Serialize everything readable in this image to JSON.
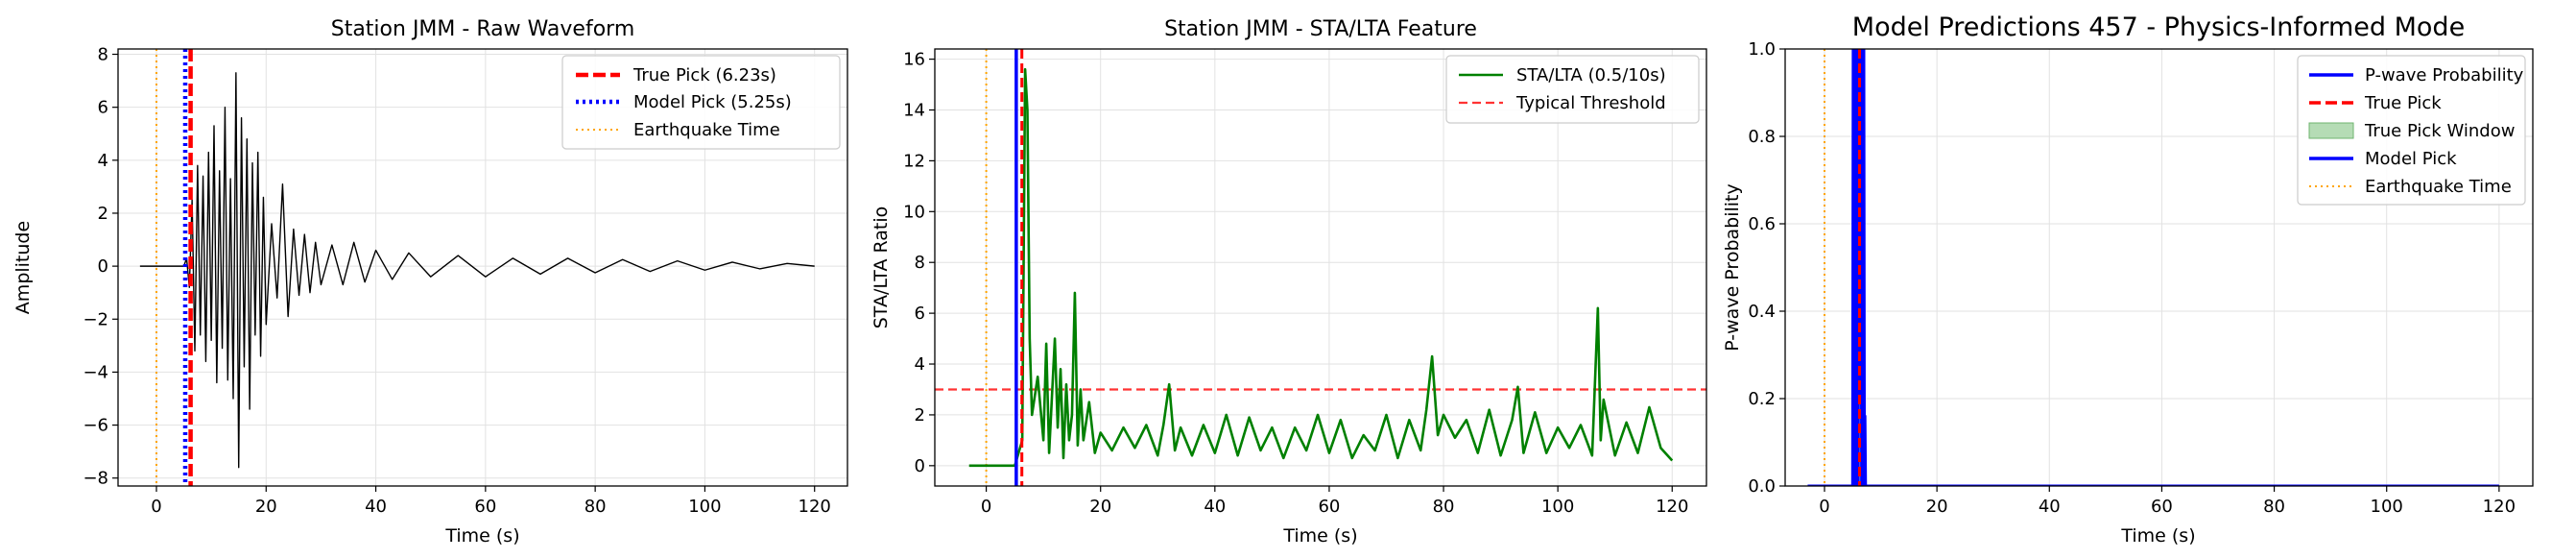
{
  "colors": {
    "true_pick": "#ff0000",
    "model_pick": "#0000ff",
    "eq_time": "#ffa500",
    "waveform": "#000000",
    "sta_lta": "#008000",
    "threshold": "#ff3333",
    "probability": "#0000ff",
    "window_fill": "#b5dcb5"
  },
  "chart_data": [
    {
      "type": "line",
      "title": "Station JMM - Raw Waveform",
      "xlabel": "Time (s)",
      "ylabel": "Amplitude",
      "xlim": [
        -7,
        126
      ],
      "ylim": [
        -8.3,
        8.2
      ],
      "xticks": [
        0,
        20,
        40,
        60,
        80,
        100,
        120
      ],
      "xtick_labels": [
        "0",
        "20",
        "40",
        "60",
        "80",
        "100",
        "120"
      ],
      "yticks": [
        8,
        6,
        4,
        2,
        0,
        -2,
        -4,
        -6,
        -8
      ],
      "ytick_labels": [
        "8",
        "6",
        "4",
        "2",
        "0",
        "−2",
        "−4",
        "−6",
        "−8"
      ],
      "grid": true,
      "legend_position": "top-right",
      "legend": [
        "True Pick (6.23s)",
        "Model Pick (5.25s)",
        "Earthquake Time"
      ],
      "series": [
        {
          "name": "waveform",
          "x": [
            -3,
            0,
            3,
            5,
            5.5,
            6,
            6.5,
            7,
            7.5,
            8,
            8.5,
            9,
            9.5,
            10,
            10.5,
            11,
            11.5,
            12,
            12.5,
            13,
            13.5,
            14,
            14.5,
            15,
            15.5,
            16,
            16.5,
            17,
            17.5,
            18,
            18.5,
            19,
            19.5,
            20,
            21,
            22,
            23,
            24,
            25,
            26,
            27,
            28,
            29,
            30,
            32,
            34,
            36,
            38,
            40,
            43,
            46,
            50,
            55,
            60,
            65,
            70,
            75,
            80,
            85,
            90,
            95,
            100,
            105,
            110,
            115,
            120
          ],
          "values": [
            0,
            0,
            0,
            0,
            0.3,
            -0.8,
            2.5,
            -3.2,
            3.8,
            -2.6,
            3.4,
            -3.6,
            4.3,
            -2.8,
            5.3,
            -4.4,
            3.6,
            -3.1,
            6.0,
            -4.3,
            3.3,
            -5.0,
            7.3,
            -7.6,
            5.6,
            -3.8,
            4.8,
            -5.4,
            3.9,
            -2.6,
            4.3,
            -3.4,
            2.6,
            -2.2,
            1.6,
            -1.2,
            3.1,
            -1.9,
            1.4,
            -1.1,
            1.2,
            -1.0,
            0.9,
            -0.7,
            0.8,
            -0.7,
            0.9,
            -0.6,
            0.6,
            -0.5,
            0.5,
            -0.4,
            0.4,
            -0.4,
            0.3,
            -0.3,
            0.3,
            -0.25,
            0.25,
            -0.2,
            0.2,
            -0.15,
            0.15,
            -0.1,
            0.1,
            0
          ]
        },
        {
          "name": "True Pick (6.23s)",
          "vline": 6.23
        },
        {
          "name": "Model Pick (5.25s)",
          "vline": 5.25
        },
        {
          "name": "Earthquake Time",
          "vline": 0
        }
      ]
    },
    {
      "type": "line",
      "title": "Station JMM - STA/LTA Feature",
      "xlabel": "Time (s)",
      "ylabel": "STA/LTA Ratio",
      "xlim": [
        -9,
        126
      ],
      "ylim": [
        -0.8,
        16.4
      ],
      "xticks": [
        0,
        20,
        40,
        60,
        80,
        100,
        120
      ],
      "xtick_labels": [
        "0",
        "20",
        "40",
        "60",
        "80",
        "100",
        "120"
      ],
      "yticks": [
        0,
        2,
        4,
        6,
        8,
        10,
        12,
        14,
        16
      ],
      "ytick_labels": [
        "0",
        "2",
        "4",
        "6",
        "8",
        "10",
        "12",
        "14",
        "16"
      ],
      "grid": true,
      "legend_position": "top-right",
      "legend": [
        "STA/LTA (0.5/10s)",
        "Typical Threshold"
      ],
      "threshold": 3,
      "series": [
        {
          "name": "STA/LTA (0.5/10s)",
          "x": [
            -3,
            5,
            6.3,
            6.8,
            7.2,
            7.6,
            8,
            9,
            10,
            10.5,
            11,
            12,
            12.5,
            13,
            13.5,
            14,
            14.5,
            15,
            15.5,
            16,
            16.5,
            17,
            18,
            19,
            20,
            22,
            24,
            26,
            28,
            30,
            31,
            32,
            33,
            34,
            36,
            38,
            40,
            42,
            44,
            46,
            48,
            50,
            52,
            54,
            56,
            58,
            60,
            62,
            64,
            66,
            68,
            70,
            72,
            74,
            76,
            77,
            78,
            79,
            80,
            82,
            84,
            86,
            88,
            90,
            92,
            93,
            94,
            96,
            98,
            100,
            102,
            104,
            106,
            107,
            107.5,
            108,
            110,
            112,
            114,
            116,
            118,
            120
          ],
          "values": [
            0,
            0,
            1.0,
            15.6,
            14.0,
            5.0,
            2.0,
            3.5,
            1.0,
            4.8,
            0.5,
            5.0,
            1.5,
            3.8,
            0.3,
            3.2,
            1.0,
            2.0,
            6.8,
            0.8,
            3.0,
            1.0,
            2.5,
            0.5,
            1.3,
            0.6,
            1.5,
            0.7,
            1.6,
            0.4,
            1.6,
            3.2,
            0.6,
            1.5,
            0.4,
            1.6,
            0.5,
            2.0,
            0.4,
            1.9,
            0.6,
            1.5,
            0.3,
            1.5,
            0.6,
            2.0,
            0.5,
            1.8,
            0.3,
            1.2,
            0.6,
            2.0,
            0.3,
            1.8,
            0.6,
            2.2,
            4.3,
            1.2,
            2.0,
            1.1,
            1.8,
            0.5,
            2.2,
            0.4,
            1.8,
            3.1,
            0.5,
            2.1,
            0.5,
            1.5,
            0.7,
            1.6,
            0.4,
            6.2,
            1.0,
            2.6,
            0.4,
            1.7,
            0.5,
            2.3,
            0.7,
            0.2
          ]
        },
        {
          "name": "Typical Threshold",
          "hline": 3
        },
        {
          "name": "True Pick",
          "vline": 6.23
        },
        {
          "name": "Model Pick",
          "vline": 5.25
        },
        {
          "name": "Earthquake Time",
          "vline": 0
        }
      ]
    },
    {
      "type": "line",
      "title": "Model Predictions 457 - Physics-Informed Mode",
      "xlabel": "Time (s)",
      "ylabel": "P-wave Probability",
      "xlim": [
        -7,
        126
      ],
      "ylim": [
        0,
        1
      ],
      "xticks": [
        0,
        20,
        40,
        60,
        80,
        100,
        120
      ],
      "xtick_labels": [
        "0",
        "20",
        "40",
        "60",
        "80",
        "100",
        "120"
      ],
      "yticks": [
        0,
        0.2,
        0.4,
        0.6,
        0.8,
        1.0
      ],
      "ytick_labels": [
        "0.0",
        "0.2",
        "0.4",
        "0.6",
        "0.8",
        "1.0"
      ],
      "grid": true,
      "legend_position": "top-right",
      "legend": [
        "P-wave Probability",
        "True Pick",
        "True Pick Window",
        "Model Pick",
        "Earthquake Time"
      ],
      "true_pick_window": [
        5.23,
        7.23
      ],
      "series": [
        {
          "name": "P-wave Probability",
          "x": [
            -3,
            5.0,
            5.1,
            5.2,
            5.3,
            5.4,
            5.5,
            5.6,
            5.7,
            5.8,
            5.9,
            6.0,
            6.1,
            6.2,
            6.3,
            6.4,
            6.5,
            6.6,
            6.7,
            6.8,
            6.9,
            7.0,
            7.1,
            7.2,
            7.3,
            120
          ],
          "values": [
            0,
            0,
            1,
            0,
            1,
            0,
            1,
            0.4,
            1,
            0,
            1,
            0,
            1,
            0.6,
            1,
            0.2,
            1,
            0,
            1,
            0.15,
            0.15,
            1,
            0,
            0.16,
            0,
            0
          ]
        },
        {
          "name": "True Pick",
          "vline": 6.23
        },
        {
          "name": "Model Pick",
          "vline": 5.25
        },
        {
          "name": "Earthquake Time",
          "vline": 0
        }
      ]
    }
  ]
}
